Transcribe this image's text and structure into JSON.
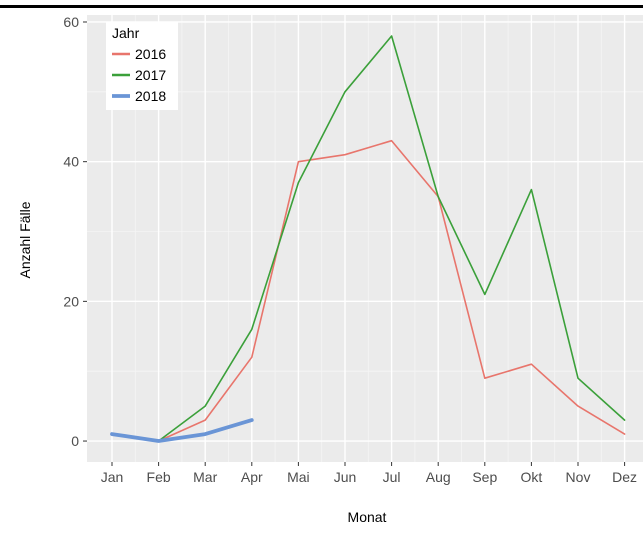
{
  "chart_data": {
    "type": "line",
    "title": "",
    "xlabel": "Monat",
    "ylabel": "Anzahl Fälle",
    "categories": [
      "Jan",
      "Feb",
      "Mar",
      "Apr",
      "Mai",
      "Jun",
      "Jul",
      "Aug",
      "Sep",
      "Okt",
      "Nov",
      "Dez"
    ],
    "ylim": [
      -3,
      61
    ],
    "yticks": [
      0,
      20,
      40,
      60
    ],
    "grid": true,
    "legend": {
      "title": "Jahr",
      "position": "top-left"
    },
    "series": [
      {
        "name": "2016",
        "color": "#E8756C",
        "values": [
          null,
          0,
          3,
          12,
          40,
          41,
          43,
          35,
          9,
          11,
          5,
          1
        ]
      },
      {
        "name": "2017",
        "color": "#3BA03A",
        "values": [
          null,
          0,
          5,
          16,
          37,
          50,
          58,
          35,
          21,
          36,
          9,
          3
        ]
      },
      {
        "name": "2018",
        "color": "#6A95D6",
        "values": [
          1,
          0,
          1,
          3,
          null,
          null,
          null,
          null,
          null,
          null,
          null,
          null
        ]
      }
    ]
  }
}
